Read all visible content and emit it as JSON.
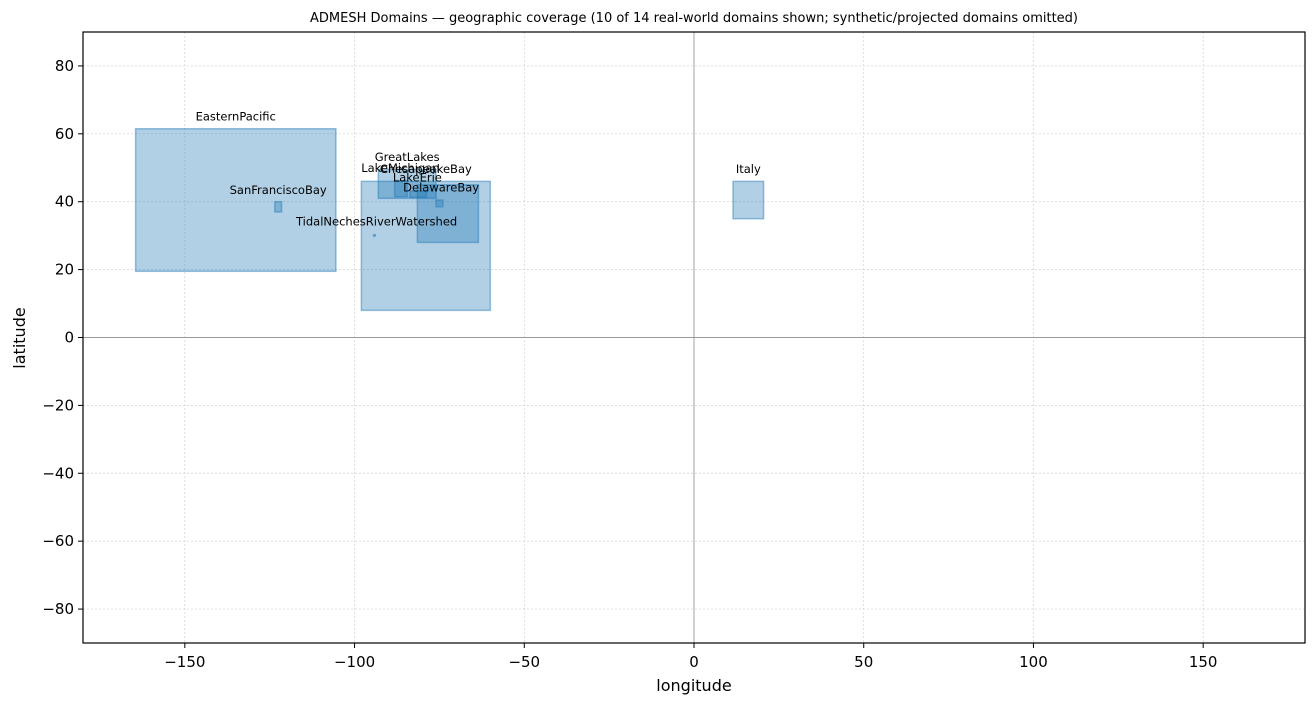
{
  "chart_data": {
    "type": "box-coverage",
    "title": "ADMESH Domains — geographic coverage (10 of 14 real-world domains shown; synthetic/projected domains omitted)",
    "xlabel": "longitude",
    "ylabel": "latitude",
    "xlim": [
      -180,
      180
    ],
    "ylim": [
      -90,
      90
    ],
    "xticks": [
      -150,
      -100,
      -50,
      0,
      50,
      100,
      150
    ],
    "yticks": [
      -80,
      -60,
      -40,
      -20,
      0,
      20,
      40,
      60,
      80
    ],
    "grid": true,
    "zero_lines": true,
    "fill_color": "#1f77b4",
    "domains": [
      {
        "name": "EasternPacific",
        "lon_min": -164.5,
        "lon_max": -105.5,
        "lat_min": 19.5,
        "lat_max": 61.5
      },
      {
        "name": "GreatLakes",
        "lon_min": -93,
        "lon_max": -76,
        "lat_min": 41,
        "lat_max": 49.5
      },
      {
        "name": "LakeMichigan",
        "lon_min": -88.2,
        "lon_max": -84.5,
        "lat_min": 41.5,
        "lat_max": 46.2
      },
      {
        "name": "ChesapeakeBay",
        "lon_min": -98,
        "lon_max": -60,
        "lat_min": 8,
        "lat_max": 46
      },
      {
        "name": "LakeErie",
        "lon_min": -83.7,
        "lon_max": -78.8,
        "lat_min": 41.3,
        "lat_max": 43.1
      },
      {
        "name": "DelawareBay",
        "lon_min": -81.5,
        "lon_max": -63.5,
        "lat_min": 28,
        "lat_max": 45
      },
      {
        "name": "SanFranciscoBay",
        "lon_min": -123.5,
        "lon_max": -121.5,
        "lat_min": 37,
        "lat_max": 40
      },
      {
        "name": "TidalNechesRiverWatershed",
        "lon_min": -94.4,
        "lon_max": -93.9,
        "lat_min": 29.9,
        "lat_max": 30.3
      },
      {
        "name": "Small inner domain",
        "lon_min": -76,
        "lon_max": -74,
        "lat_min": 38.5,
        "lat_max": 40.5
      },
      {
        "name": "Italy",
        "lon_min": 11.5,
        "lon_max": 20.5,
        "lat_min": 35,
        "lat_max": 46
      }
    ],
    "labels": [
      {
        "text": "EasternPacific",
        "lon": -135,
        "lat": 64
      },
      {
        "text": "GreatLakes",
        "lon": -84.5,
        "lat": 52
      },
      {
        "text": "LakeMichigan",
        "lon": -86.5,
        "lat": 48.8
      },
      {
        "text": "ChesapeakeBay",
        "lon": -79,
        "lat": 48.5
      },
      {
        "text": "LakeErie",
        "lon": -81.5,
        "lat": 46
      },
      {
        "text": "DelawareBay",
        "lon": -74.5,
        "lat": 43
      },
      {
        "text": "SanFranciscoBay",
        "lon": -122.5,
        "lat": 42.3
      },
      {
        "text": "TidalNechesRiverWatershed",
        "lon": -93.5,
        "lat": 33
      },
      {
        "text": "Italy",
        "lon": 16,
        "lat": 48.5
      }
    ]
  }
}
